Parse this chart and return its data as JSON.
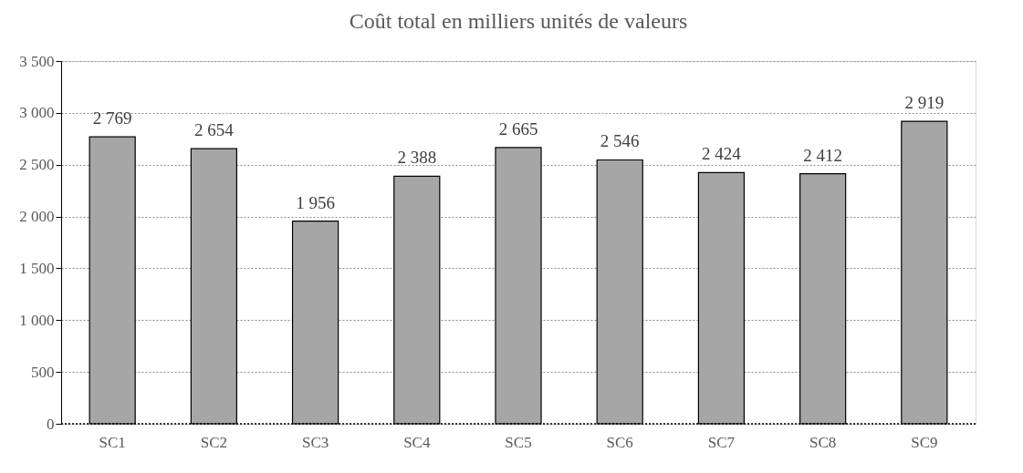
{
  "chart_data": {
    "type": "bar",
    "title": "Coût total en milliers unités de valeurs",
    "categories": [
      "SC1",
      "SC2",
      "SC3",
      "SC4",
      "SC5",
      "SC6",
      "SC7",
      "SC8",
      "SC9"
    ],
    "values": [
      2769,
      2654,
      1956,
      2388,
      2665,
      2546,
      2424,
      2412,
      2919
    ],
    "value_labels": [
      "2 769",
      "2 654",
      "1 956",
      "2 388",
      "2 665",
      "2 546",
      "2 424",
      "2 412",
      "2 919"
    ],
    "color": "#a6a6a6",
    "ylim": [
      0,
      3500
    ],
    "yticks": [
      0,
      500,
      {
        "value": 1000,
        "label": "1 000"
      },
      {
        "value": 1500,
        "label": "1 500"
      },
      {
        "value": 2000,
        "label": "2 000"
      },
      {
        "value": 2500,
        "label": "2 500"
      },
      {
        "value": 3000,
        "label": "3 000"
      },
      {
        "value": 3500,
        "label": "3 500"
      }
    ],
    "grid": "y"
  }
}
